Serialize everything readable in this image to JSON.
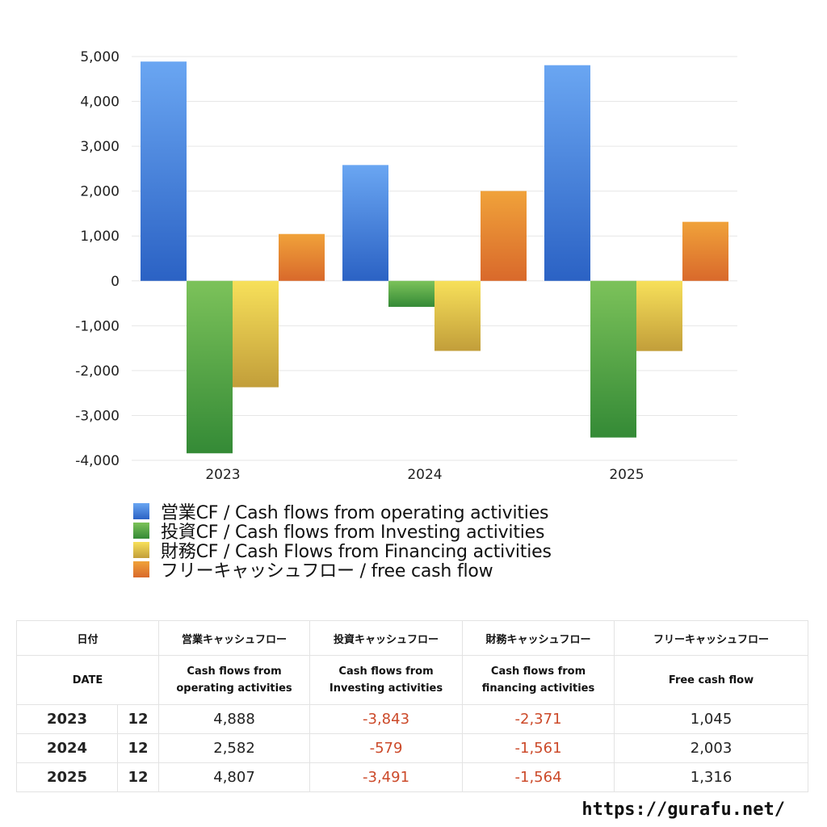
{
  "chart_data": {
    "type": "bar",
    "categories": [
      "2023",
      "2024",
      "2025"
    ],
    "series": [
      {
        "name": "営業CF / Cash flows from operating activities",
        "values": [
          4888,
          2582,
          4807
        ]
      },
      {
        "name": "投資CF / Cash flows from Investing activities",
        "values": [
          -3843,
          -579,
          -3491
        ]
      },
      {
        "name": "財務CF / Cash Flows from Financing activities",
        "values": [
          -2371,
          -1561,
          -1564
        ]
      },
      {
        "name": "フリーキャッシュフロー / free cash flow",
        "values": [
          1045,
          2003,
          1316
        ]
      }
    ],
    "y_ticks": [
      "5,000",
      "4,000",
      "3,000",
      "2,000",
      "1,000",
      "0",
      "-1,000",
      "-2,000",
      "-3,000",
      "-4,000"
    ],
    "ylim": [
      -4000,
      5000
    ],
    "grid": true,
    "legend_placement": "bottom",
    "colors": {
      "operating": [
        "#6aa6f2",
        "#2b62c4"
      ],
      "investing": [
        "#7cc25a",
        "#348a36"
      ],
      "financing": [
        "#f7e05a",
        "#c29e3a"
      ],
      "free": [
        "#f0a23a",
        "#d9692b"
      ]
    }
  },
  "table": {
    "header_row1": {
      "date": "日付",
      "operating": "営業キャッシュフロー",
      "investing": "投資キャッシュフロー",
      "financing": "財務キャッシュフロー",
      "free": "フリーキャッシュフロー"
    },
    "header_row2": {
      "date": "DATE",
      "operating": "Cash flows from operating activities",
      "investing": "Cash flows from Investing activities",
      "financing": "Cash flows from financing activities",
      "free": "Free cash flow"
    },
    "rows": [
      {
        "year": "2023",
        "month": "12",
        "operating": "4,888",
        "investing": "-3,843",
        "financing": "-2,371",
        "free": "1,045"
      },
      {
        "year": "2024",
        "month": "12",
        "operating": "2,582",
        "investing": "-579",
        "financing": "-1,561",
        "free": "2,003"
      },
      {
        "year": "2025",
        "month": "12",
        "operating": "4,807",
        "investing": "-3,491",
        "financing": "-1,564",
        "free": "1,316"
      }
    ]
  },
  "footer": {
    "url": "https://gurafu.net/"
  }
}
